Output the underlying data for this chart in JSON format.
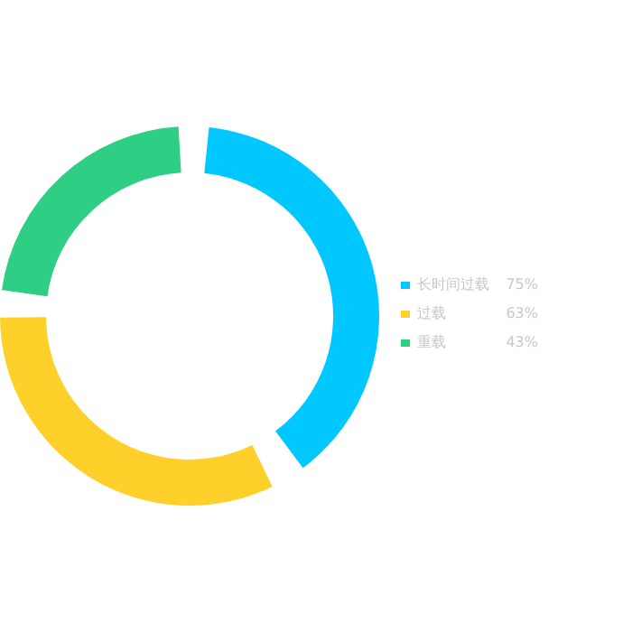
{
  "chart_data": {
    "type": "donut",
    "categories": [
      "长时间过载",
      "过载",
      "重载"
    ],
    "values": [
      75,
      63,
      43
    ],
    "value_labels": [
      "75%",
      "63%",
      "43%"
    ],
    "colors": [
      "#00c8ff",
      "#ffd029",
      "#2ecf85"
    ],
    "legend": "right"
  }
}
